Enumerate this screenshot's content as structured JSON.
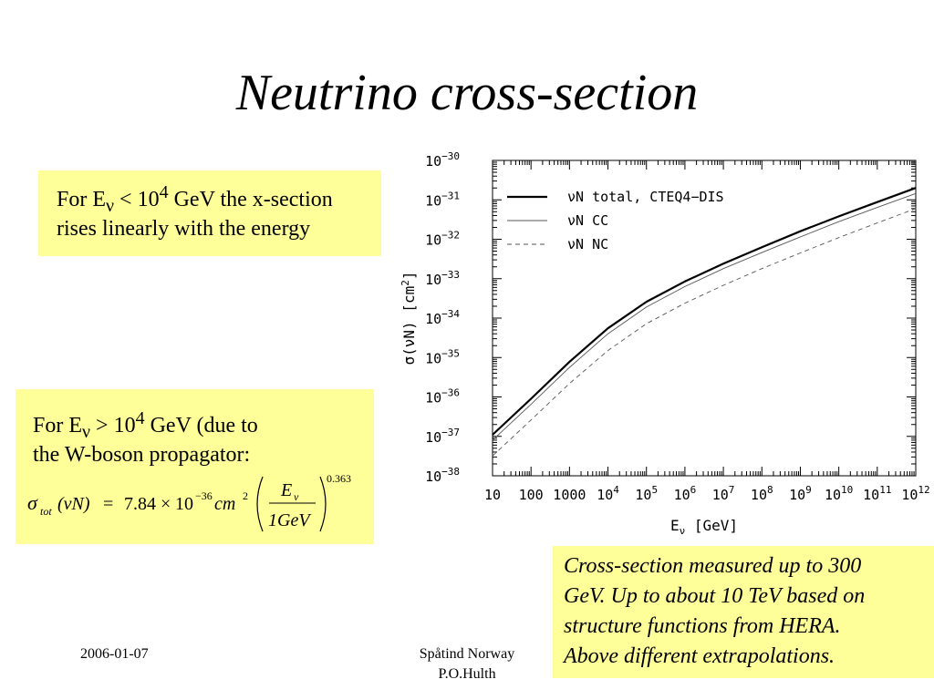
{
  "slide": {
    "title": "Neutrino cross-section",
    "box1": {
      "part1": "For E",
      "sub": "ν",
      "part2": " < 10",
      "sup": "4",
      "part3": " GeV the x-section",
      "line2": "rises linearly with the energy"
    },
    "box2": {
      "part1": "For E",
      "sub": "ν",
      "part2": " > 10",
      "sup": "4",
      "part3": " GeV (due to",
      "line2": "the W-boson propagator:",
      "formula": {
        "sigma": "σ",
        "tot": "tot",
        "arg": "(νN)",
        "eq": "=",
        "coef": "7.84",
        "times": "×",
        "base": "10",
        "exp": "−36",
        "unit": "cm",
        "unit_exp": "2",
        "num": "E",
        "num_sub": "ν",
        "den": "1GeV",
        "power": "0.363"
      }
    },
    "box3": {
      "line1": "Cross-section measured up to 300",
      "line2": "GeV. Up to about 10 TeV based on",
      "line3": "structure functions from HERA.",
      "line4": "Above different extrapolations."
    },
    "footer": {
      "date": "2006-01-07",
      "center_line1": "Spåtind Norway",
      "center_line2": "P.O.Hulth"
    },
    "colors": {
      "box_fill": "#ffff99"
    }
  },
  "chart_data": {
    "type": "line",
    "xscale": "log",
    "yscale": "log",
    "xlim": [
      10,
      1000000000000.0
    ],
    "ylim": [
      1e-38,
      1e-30
    ],
    "x_tick_labels": [
      {
        "base": "10",
        "exp": ""
      },
      {
        "base": "100",
        "exp": ""
      },
      {
        "base": "1000",
        "exp": ""
      },
      {
        "base": "10",
        "exp": "4"
      },
      {
        "base": "10",
        "exp": "5"
      },
      {
        "base": "10",
        "exp": "6"
      },
      {
        "base": "10",
        "exp": "7"
      },
      {
        "base": "10",
        "exp": "8"
      },
      {
        "base": "10",
        "exp": "9"
      },
      {
        "base": "10",
        "exp": "10"
      },
      {
        "base": "10",
        "exp": "11"
      },
      {
        "base": "10",
        "exp": "12"
      }
    ],
    "y_tick_labels": [
      {
        "base": "10",
        "exp": "−30"
      },
      {
        "base": "10",
        "exp": "−31"
      },
      {
        "base": "10",
        "exp": "−32"
      },
      {
        "base": "10",
        "exp": "−33"
      },
      {
        "base": "10",
        "exp": "−34"
      },
      {
        "base": "10",
        "exp": "−35"
      },
      {
        "base": "10",
        "exp": "−36"
      },
      {
        "base": "10",
        "exp": "−37"
      },
      {
        "base": "10",
        "exp": "−38"
      }
    ],
    "xlabel": "E",
    "xlabel_sub": "ν",
    "xlabel_unit": " [GeV]",
    "ylabel": "σ(νN) [cm",
    "ylabel_sup": "2",
    "ylabel_end": "]",
    "legend_position": "top-left",
    "series": [
      {
        "name": "νN total, CTEQ4−DIS",
        "style": "solid-thick",
        "x": [
          10,
          100,
          1000,
          10000,
          100000,
          1000000,
          10000000,
          100000000,
          1000000000,
          10000000000,
          100000000000,
          1000000000000
        ],
        "y": [
          1.1e-37,
          9e-37,
          7.8e-36,
          5.5e-35,
          2.6e-34,
          8.5e-34,
          2.4e-33,
          6.3e-33,
          1.6e-32,
          3.8e-32,
          8.8e-32,
          2e-31
        ]
      },
      {
        "name": "νN CC",
        "style": "solid-thin",
        "x": [
          10,
          100,
          1000,
          10000,
          100000,
          1000000,
          10000000,
          100000000,
          1000000000,
          10000000000,
          100000000000,
          1000000000000
        ],
        "y": [
          8e-38,
          6.5e-37,
          5.6e-36,
          4e-35,
          1.9e-34,
          6.3e-34,
          1.8e-33,
          4.6e-33,
          1.15e-32,
          2.8e-32,
          6.4e-32,
          1.45e-31
        ]
      },
      {
        "name": "νN NC",
        "style": "dashed",
        "x": [
          10,
          100,
          1000,
          10000,
          100000,
          1000000,
          10000000,
          100000000,
          1000000000,
          10000000000,
          100000000000,
          1000000000000
        ],
        "y": [
          3.2e-38,
          2.6e-37,
          2.2e-36,
          1.5e-35,
          7.2e-35,
          2.4e-34,
          6.8e-34,
          1.8e-33,
          4.5e-33,
          1.1e-32,
          2.6e-32,
          6e-32
        ]
      }
    ]
  }
}
